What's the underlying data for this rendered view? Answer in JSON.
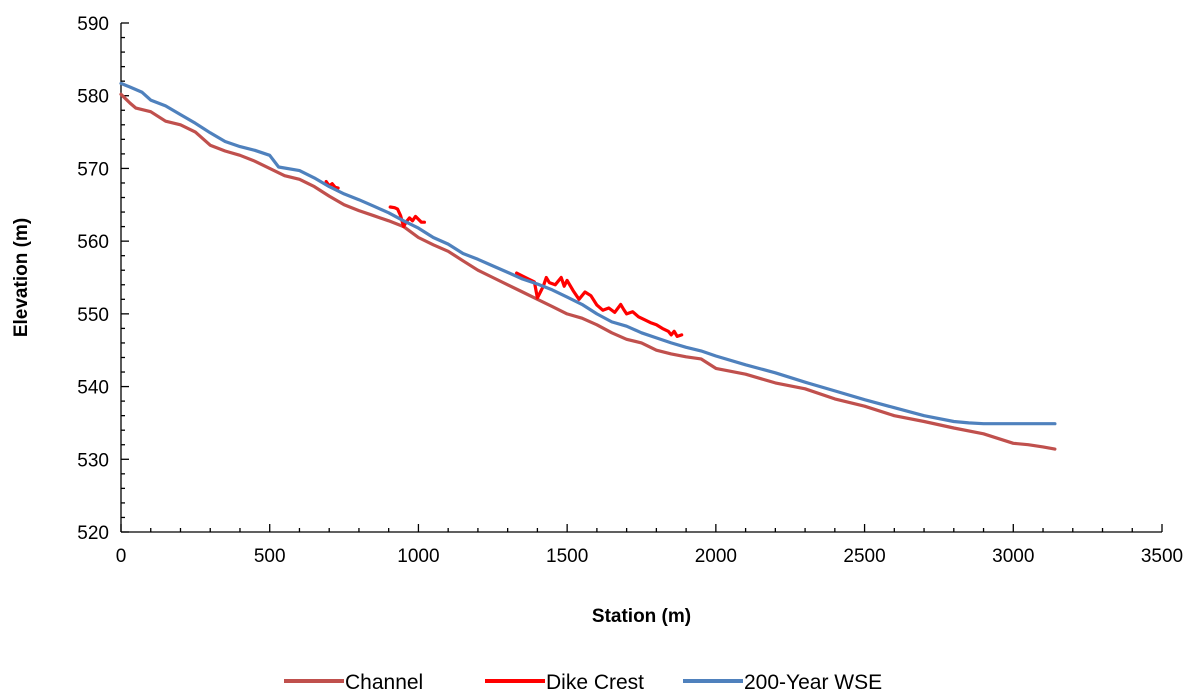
{
  "chart_data": {
    "type": "line",
    "title": "",
    "xlabel": "Station (m)",
    "ylabel": "Elevation (m)",
    "xlim": [
      0,
      3500
    ],
    "ylim": [
      520,
      590
    ],
    "xticks": [
      0,
      500,
      1000,
      1500,
      2000,
      2500,
      3000,
      3500
    ],
    "yticks": [
      520,
      530,
      540,
      550,
      560,
      570,
      580,
      590
    ],
    "grid": false,
    "legend_position": "bottom",
    "series": [
      {
        "name": "Channel",
        "color": "#c0504d",
        "x": [
          0,
          30,
          50,
          100,
          150,
          200,
          250,
          300,
          350,
          400,
          450,
          500,
          550,
          600,
          650,
          700,
          750,
          800,
          850,
          900,
          950,
          1000,
          1050,
          1100,
          1150,
          1200,
          1250,
          1300,
          1350,
          1400,
          1450,
          1500,
          1550,
          1600,
          1650,
          1700,
          1750,
          1800,
          1850,
          1900,
          1950,
          2000,
          2100,
          2200,
          2300,
          2400,
          2500,
          2600,
          2700,
          2800,
          2900,
          3000,
          3050,
          3100,
          3140
        ],
        "y": [
          580.2,
          579.0,
          578.3,
          577.8,
          576.5,
          576.0,
          575.0,
          573.2,
          572.4,
          571.8,
          571.0,
          570.0,
          569.0,
          568.5,
          567.5,
          566.2,
          565.0,
          564.2,
          563.5,
          562.8,
          562.0,
          560.5,
          559.5,
          558.6,
          557.3,
          556.0,
          555.0,
          554.0,
          553.0,
          552.0,
          551.0,
          550.0,
          549.4,
          548.5,
          547.4,
          546.5,
          546.0,
          545.0,
          544.5,
          544.1,
          543.8,
          542.5,
          541.7,
          540.5,
          539.7,
          538.3,
          537.3,
          536.0,
          535.2,
          534.3,
          533.5,
          532.2,
          532.0,
          531.7,
          531.4
        ]
      },
      {
        "name": "Dike Crest",
        "color": "#ff0000",
        "segments": [
          {
            "x": [
              690,
              700,
              710,
              720,
              730
            ],
            "y": [
              568.2,
              567.6,
              567.9,
              567.4,
              567.3
            ]
          },
          {
            "x": [
              905,
              920,
              930,
              940,
              950,
              960,
              970,
              980,
              990,
              1000,
              1010,
              1020
            ],
            "y": [
              564.7,
              564.6,
              564.4,
              563.5,
              562.0,
              562.7,
              563.2,
              562.8,
              563.4,
              563.0,
              562.6,
              562.6
            ]
          },
          {
            "x": [
              1330,
              1350,
              1370,
              1390,
              1400,
              1410,
              1420,
              1430,
              1440,
              1460,
              1480,
              1490,
              1500,
              1520,
              1540,
              1560,
              1580,
              1600,
              1620,
              1640,
              1660,
              1680,
              1690,
              1700,
              1720,
              1740,
              1760,
              1780,
              1800,
              1820,
              1840,
              1850,
              1860,
              1870,
              1885
            ],
            "y": [
              555.6,
              555.2,
              554.8,
              554.4,
              552.2,
              553.0,
              553.8,
              555.0,
              554.3,
              554.0,
              555.0,
              553.8,
              554.6,
              553.2,
              552.0,
              553.0,
              552.5,
              551.2,
              550.5,
              550.8,
              550.2,
              551.3,
              550.6,
              550.0,
              550.3,
              549.6,
              549.2,
              548.8,
              548.5,
              548.0,
              547.6,
              547.1,
              547.6,
              546.9,
              547.1
            ]
          }
        ]
      },
      {
        "name": "200-Year WSE",
        "color": "#4f81bd",
        "x": [
          0,
          30,
          70,
          100,
          150,
          200,
          250,
          300,
          350,
          400,
          450,
          500,
          530,
          600,
          650,
          700,
          750,
          800,
          850,
          900,
          950,
          1000,
          1050,
          1100,
          1150,
          1200,
          1250,
          1300,
          1350,
          1400,
          1450,
          1500,
          1550,
          1600,
          1650,
          1700,
          1750,
          1800,
          1850,
          1900,
          1950,
          2000,
          2100,
          2200,
          2300,
          2400,
          2500,
          2600,
          2700,
          2800,
          2850,
          2900,
          3000,
          3100,
          3140
        ],
        "y": [
          581.7,
          581.2,
          580.5,
          579.4,
          578.6,
          577.4,
          576.2,
          574.9,
          573.7,
          573.0,
          572.5,
          571.8,
          570.2,
          569.7,
          568.7,
          567.5,
          566.5,
          565.7,
          564.8,
          563.9,
          562.8,
          561.8,
          560.5,
          559.6,
          558.3,
          557.5,
          556.6,
          555.7,
          554.8,
          554.1,
          553.3,
          552.3,
          551.3,
          550.0,
          548.9,
          548.3,
          547.4,
          546.7,
          546.0,
          545.4,
          544.9,
          544.2,
          543.0,
          541.9,
          540.6,
          539.4,
          538.2,
          537.1,
          536.0,
          535.2,
          535.0,
          534.9,
          534.9,
          534.9,
          534.9
        ]
      }
    ]
  }
}
